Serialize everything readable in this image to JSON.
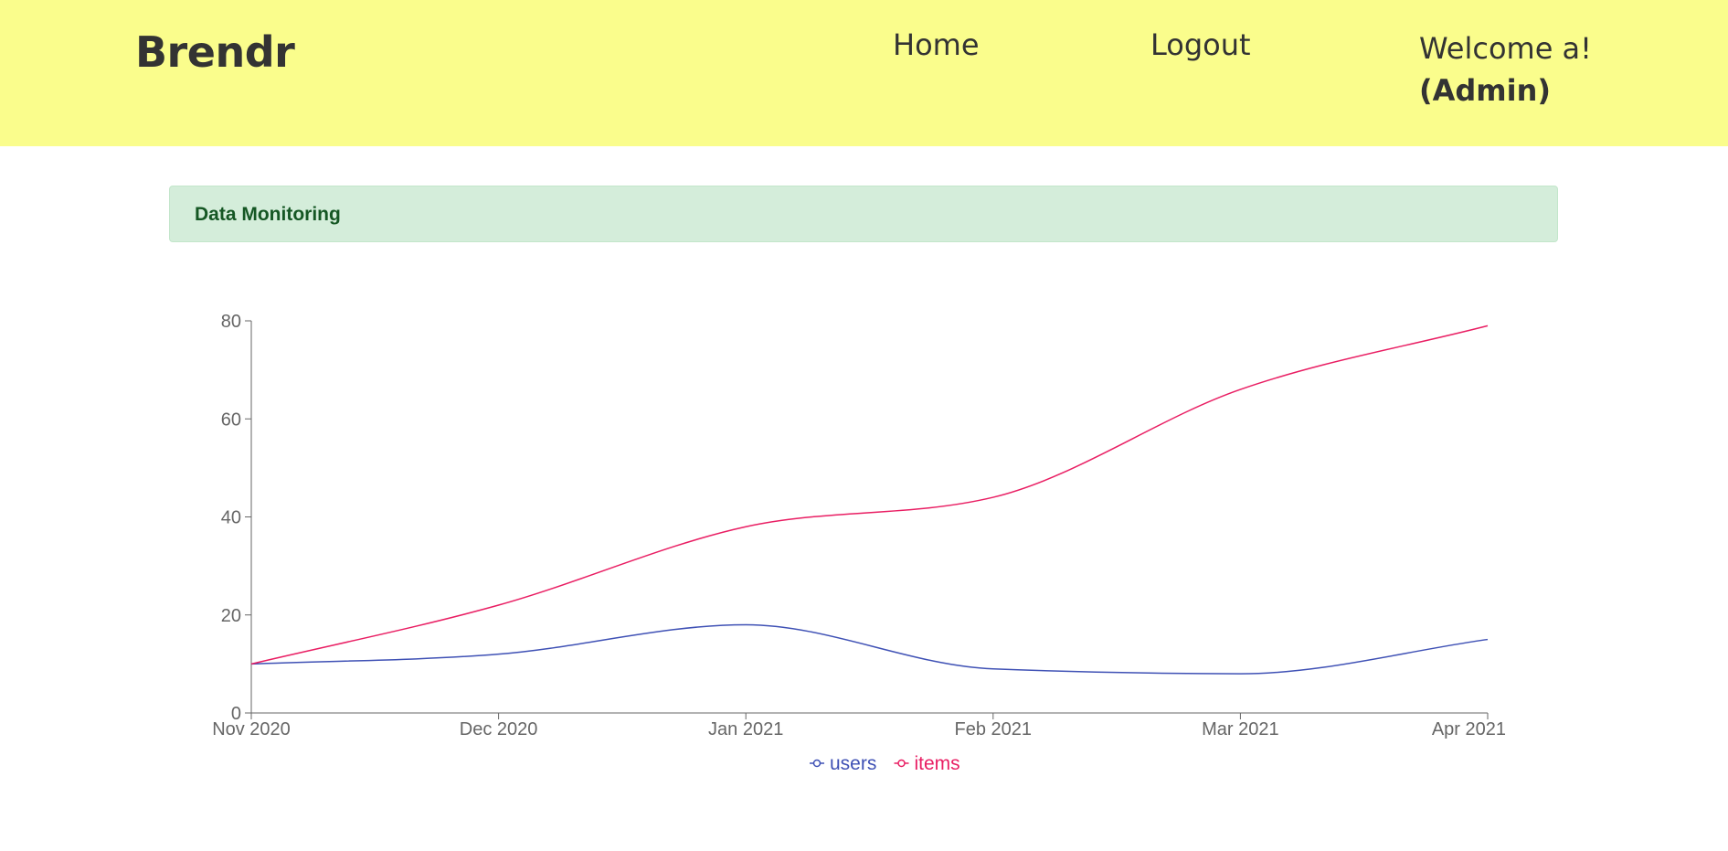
{
  "header": {
    "brand": "Brendr",
    "nav": {
      "home": "Home",
      "logout": "Logout"
    },
    "welcome": "Welcome a!",
    "role": "(Admin)"
  },
  "alert": {
    "text": "Data Monitoring"
  },
  "colors": {
    "header_bg": "#fafd8c",
    "alert_bg": "#d4edda",
    "alert_text": "#155724",
    "users": "#3f51b5",
    "items": "#e91e63"
  },
  "chart_data": {
    "type": "line",
    "categories": [
      "Nov 2020",
      "Dec 2020",
      "Jan 2021",
      "Feb 2021",
      "Mar 2021",
      "Apr 2021"
    ],
    "series": [
      {
        "name": "users",
        "values": [
          10,
          12,
          18,
          9,
          8,
          15
        ]
      },
      {
        "name": "items",
        "values": [
          10,
          22,
          38,
          44,
          66,
          79
        ]
      }
    ],
    "y_ticks": [
      0,
      20,
      40,
      60,
      80
    ],
    "ylim": [
      0,
      80
    ],
    "grid": false,
    "legend_position": "bottom-center",
    "title": "",
    "xlabel": "",
    "ylabel": ""
  }
}
